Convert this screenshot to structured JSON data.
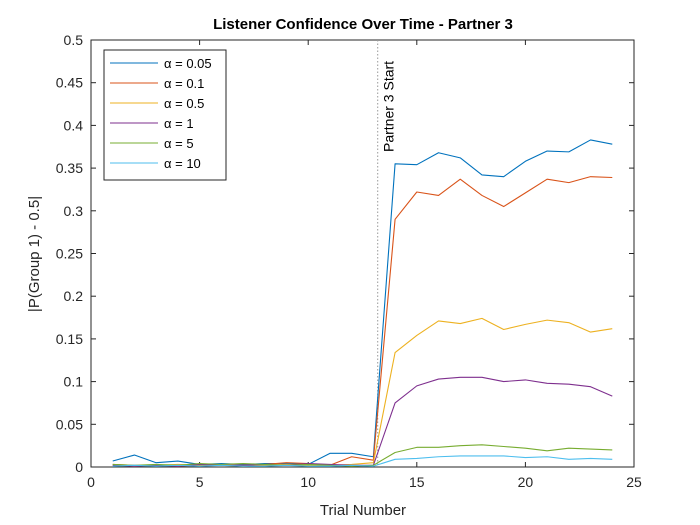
{
  "chart_data": {
    "type": "line",
    "title": "Listener Confidence Over Time - Partner 3",
    "xlabel": "Trial Number",
    "ylabel": "|P(Group 1) - 0.5|",
    "xlim": [
      0,
      25
    ],
    "ylim": [
      0,
      0.5
    ],
    "xticks": [
      0,
      5,
      10,
      15,
      20,
      25
    ],
    "yticks": [
      0,
      0.05,
      0.1,
      0.15,
      0.2,
      0.25,
      0.3,
      0.35,
      0.4,
      0.45,
      0.5
    ],
    "grid": false,
    "legend_position": "top-left",
    "x": [
      1,
      2,
      3,
      4,
      5,
      6,
      7,
      8,
      9,
      10,
      11,
      12,
      13,
      14,
      15,
      16,
      17,
      18,
      19,
      20,
      21,
      22,
      23,
      24
    ],
    "series": [
      {
        "name": "α = 0.05",
        "color": "#0072BD",
        "values": [
          0.007,
          0.014,
          0.005,
          0.007,
          0.003,
          0.004,
          0.003,
          0.004,
          0.004,
          0.003,
          0.016,
          0.016,
          0.012,
          0.355,
          0.354,
          0.368,
          0.362,
          0.342,
          0.34,
          0.358,
          0.37,
          0.369,
          0.383,
          0.378
        ]
      },
      {
        "name": "α = 0.1",
        "color": "#D95319",
        "values": [
          0.003,
          0.002,
          0.002,
          0.001,
          0.002,
          0.002,
          0.002,
          0.003,
          0.005,
          0.004,
          0.002,
          0.012,
          0.008,
          0.29,
          0.322,
          0.318,
          0.337,
          0.318,
          0.305,
          0.321,
          0.337,
          0.333,
          0.34,
          0.339
        ]
      },
      {
        "name": "α = 0.5",
        "color": "#EDB120",
        "values": [
          0.002,
          0.001,
          0.002,
          0.003,
          0.002,
          0.002,
          0.001,
          0.002,
          0.003,
          0.002,
          0.002,
          0.003,
          0.005,
          0.134,
          0.154,
          0.171,
          0.168,
          0.174,
          0.161,
          0.167,
          0.172,
          0.169,
          0.158,
          0.162
        ]
      },
      {
        "name": "α = 1",
        "color": "#7E2F8E",
        "values": [
          0.002,
          0.001,
          0.002,
          0.001,
          0.003,
          0.002,
          0.002,
          0.003,
          0.002,
          0.004,
          0.003,
          0.002,
          0.002,
          0.075,
          0.095,
          0.103,
          0.105,
          0.105,
          0.1,
          0.102,
          0.098,
          0.097,
          0.094,
          0.083
        ]
      },
      {
        "name": "α = 5",
        "color": "#77AC30",
        "values": [
          0.003,
          0.002,
          0.003,
          0.002,
          0.004,
          0.003,
          0.004,
          0.003,
          0.002,
          0.003,
          0.002,
          0.001,
          0.002,
          0.017,
          0.023,
          0.023,
          0.025,
          0.026,
          0.024,
          0.022,
          0.019,
          0.022,
          0.021,
          0.02
        ]
      },
      {
        "name": "α = 10",
        "color": "#4DBEEE",
        "values": [
          0.001,
          0.002,
          0.001,
          0.002,
          0.001,
          0.002,
          0.001,
          0.001,
          0.002,
          0.001,
          0.001,
          0.002,
          0.001,
          0.009,
          0.01,
          0.012,
          0.013,
          0.013,
          0.013,
          0.011,
          0.012,
          0.009,
          0.01,
          0.009
        ]
      }
    ],
    "annotations": [
      {
        "text": "Partner 3 Start",
        "x": 13.2,
        "line_style": "dotted",
        "color": "#999999"
      }
    ]
  }
}
